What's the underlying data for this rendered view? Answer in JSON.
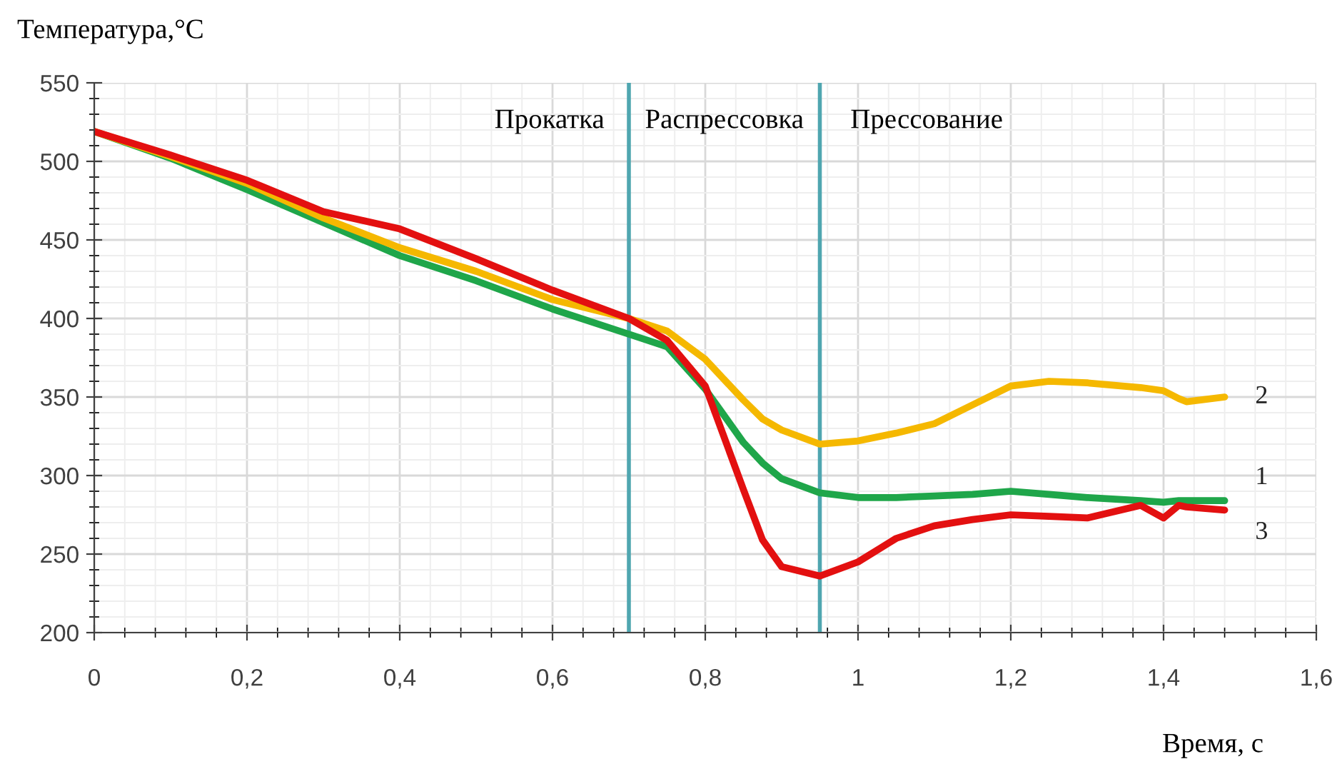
{
  "chart_data": {
    "type": "line",
    "xlabel": "Время, с",
    "ylabel": "Температура,°С",
    "xlim": [
      0,
      1.6
    ],
    "ylim": [
      200,
      550
    ],
    "xticks": [
      0,
      {
        "value": 0.2,
        "label": "0,2"
      },
      {
        "value": 0.4,
        "label": "0,4"
      },
      {
        "value": 0.6,
        "label": "0,6"
      },
      {
        "value": 0.8,
        "label": "0,8"
      },
      1,
      {
        "value": 1.2,
        "label": "1,2"
      },
      {
        "value": 1.4,
        "label": "1,4"
      },
      {
        "value": 1.6,
        "label": "1,6"
      }
    ],
    "yticks": [
      200,
      250,
      300,
      350,
      400,
      450,
      500,
      550
    ],
    "grid": true,
    "marker": "none",
    "line_style": "solid",
    "x": [
      0,
      0.1,
      0.2,
      0.3,
      0.4,
      0.5,
      0.6,
      0.7,
      0.75,
      0.8,
      0.85,
      0.875,
      0.9,
      0.95,
      1.0,
      1.05,
      1.1,
      1.15,
      1.2,
      1.25,
      1.3,
      1.37,
      1.4,
      1.42,
      1.43,
      1.48
    ],
    "series": [
      {
        "name": "1",
        "color": "#1fa64a",
        "values": [
          519,
          502,
          482,
          461,
          440,
          424,
          406,
          390,
          382,
          355,
          321,
          308,
          298,
          289,
          286,
          286,
          287,
          288,
          290,
          288,
          286,
          284,
          283,
          284,
          284,
          284
        ]
      },
      {
        "name": "2",
        "color": "#f5b800",
        "values": [
          519,
          503,
          486,
          464,
          445,
          430,
          412,
          400,
          392,
          374,
          348,
          336,
          329,
          320,
          322,
          327,
          333,
          345,
          357,
          360,
          359,
          356,
          354,
          349,
          347,
          350
        ]
      },
      {
        "name": "3",
        "color": "#e31010",
        "values": [
          519,
          504,
          488,
          468,
          457,
          438,
          418,
          400,
          386,
          357,
          291,
          259,
          242,
          236,
          245,
          260,
          268,
          272,
          275,
          274,
          273,
          281,
          273,
          281,
          280,
          278
        ]
      }
    ],
    "ref_lines": [
      {
        "axis": "x",
        "value": 0.7,
        "color": "#4fa6b0"
      },
      {
        "axis": "x",
        "value": 0.95,
        "color": "#4fa6b0"
      }
    ],
    "annotations": [
      "Прокатка",
      "Распрессовка",
      "Прессование"
    ]
  }
}
